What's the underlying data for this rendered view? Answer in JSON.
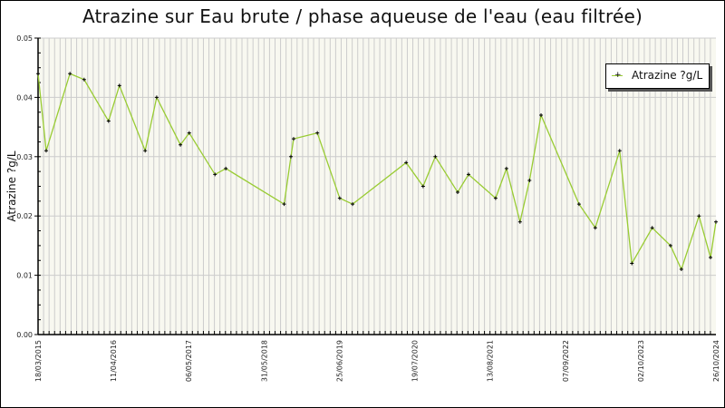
{
  "title": "Atrazine sur Eau brute / phase aqueuse de l'eau (eau filtrée)",
  "legend": {
    "label": "Atrazine ?g/L",
    "marker": "+"
  },
  "colors": {
    "line": "#99cc33",
    "marker": "#000000",
    "plot_bg": "#f8f8f0",
    "grid": "#cccccc"
  },
  "chart_data": {
    "type": "line",
    "title": "Atrazine sur Eau brute / phase aqueuse de l'eau (eau filtrée)",
    "xlabel": "",
    "ylabel": "Atrazine ?g/L",
    "ylim": [
      0,
      0.05
    ],
    "yticks": [
      "0.00",
      "0.01",
      "0.02",
      "0.03",
      "0.04",
      "0.05"
    ],
    "xticks": [
      "18/03/2015",
      "11/04/2016",
      "06/05/2017",
      "31/05/2018",
      "25/06/2019",
      "19/07/2020",
      "13/08/2021",
      "07/09/2022",
      "02/10/2023",
      "26/10/2024"
    ],
    "legend_position": "top-right",
    "grid": true,
    "series": [
      {
        "name": "Atrazine ?g/L",
        "x_frac": [
          0.0,
          0.012,
          0.047,
          0.068,
          0.104,
          0.12,
          0.158,
          0.175,
          0.21,
          0.223,
          0.261,
          0.277,
          0.363,
          0.373,
          0.377,
          0.412,
          0.445,
          0.464,
          0.543,
          0.568,
          0.586,
          0.619,
          0.635,
          0.675,
          0.691,
          0.711,
          0.725,
          0.742,
          0.742,
          0.798,
          0.822,
          0.858,
          0.876,
          0.906,
          0.933,
          0.949,
          0.975,
          0.992,
          1.0
        ],
        "values": [
          0.044,
          0.031,
          0.044,
          0.043,
          0.036,
          0.042,
          0.031,
          0.04,
          0.032,
          0.034,
          0.027,
          0.028,
          0.022,
          0.03,
          0.033,
          0.034,
          0.023,
          0.022,
          0.029,
          0.025,
          0.03,
          0.024,
          0.027,
          0.023,
          0.028,
          0.019,
          0.026,
          0.037,
          0.037,
          0.022,
          0.018,
          0.031,
          0.012,
          0.018,
          0.015,
          0.011,
          0.02,
          0.013,
          0.019
        ]
      }
    ]
  }
}
